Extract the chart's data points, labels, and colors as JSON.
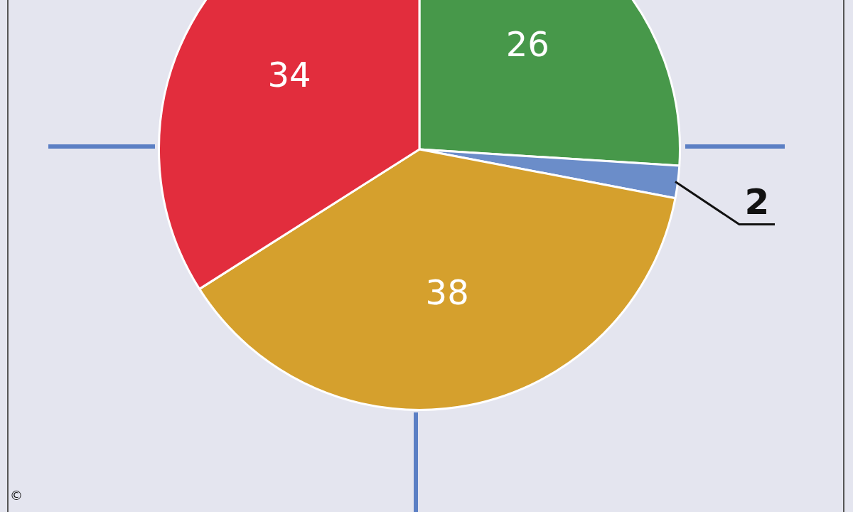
{
  "chart_data": {
    "type": "pie",
    "categories": [
      null,
      null,
      null,
      null
    ],
    "values": [
      26,
      2,
      38,
      34
    ],
    "colors": [
      "#47984a",
      "#6b8dc9",
      "#d5a02d",
      "#e22d3d"
    ],
    "data_labels": true,
    "legend": false,
    "annotations": [
      "©"
    ]
  }
}
